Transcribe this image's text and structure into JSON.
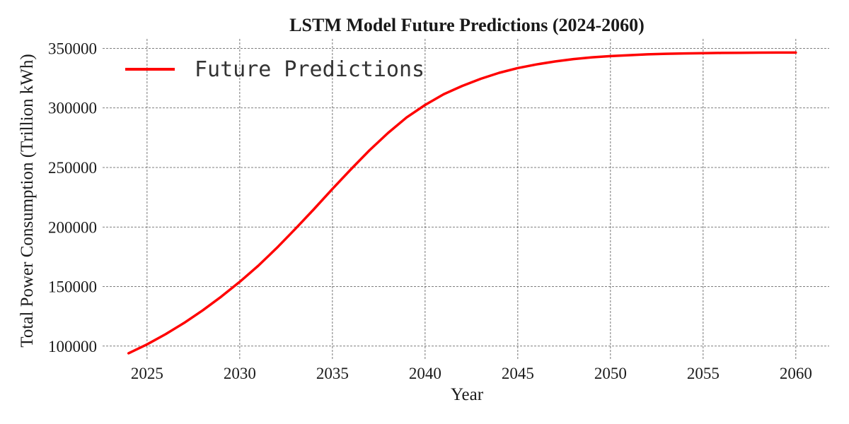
{
  "chart_data": {
    "type": "line",
    "title": "LSTM Model Future Predictions (2024-2060)",
    "xlabel": "Year",
    "ylabel": "Total Power Consumption (Trillion kWh)",
    "xlim": [
      2022.6,
      2061.8
    ],
    "ylim": [
      88000,
      358000
    ],
    "xticks": [
      2025,
      2030,
      2035,
      2040,
      2045,
      2050,
      2055,
      2060
    ],
    "xtick_labels": [
      "2025",
      "2030",
      "2035",
      "2040",
      "2045",
      "2050",
      "2055",
      "2060"
    ],
    "yticks": [
      100000,
      150000,
      200000,
      250000,
      300000,
      350000
    ],
    "ytick_labels": [
      "100000",
      "150000",
      "200000",
      "250000",
      "300000",
      "350000"
    ],
    "grid": true,
    "legend_position": "top-left",
    "series": [
      {
        "name": "Future Predictions",
        "color": "#ff0000",
        "x": [
          2024,
          2025,
          2026,
          2027,
          2028,
          2029,
          2030,
          2031,
          2032,
          2033,
          2034,
          2035,
          2036,
          2037,
          2038,
          2039,
          2040,
          2041,
          2042,
          2043,
          2044,
          2045,
          2046,
          2047,
          2048,
          2049,
          2050,
          2051,
          2052,
          2053,
          2054,
          2055,
          2056,
          2057,
          2058,
          2059,
          2060
        ],
        "y": [
          94000,
          101500,
          110000,
          119500,
          130000,
          141500,
          154000,
          167500,
          182500,
          198500,
          215000,
          232000,
          248500,
          264500,
          279000,
          292000,
          302500,
          311500,
          318500,
          324500,
          329500,
          333500,
          336500,
          339000,
          341000,
          342500,
          343500,
          344300,
          345000,
          345500,
          345800,
          346000,
          346200,
          346300,
          346400,
          346500,
          346500
        ]
      }
    ]
  }
}
